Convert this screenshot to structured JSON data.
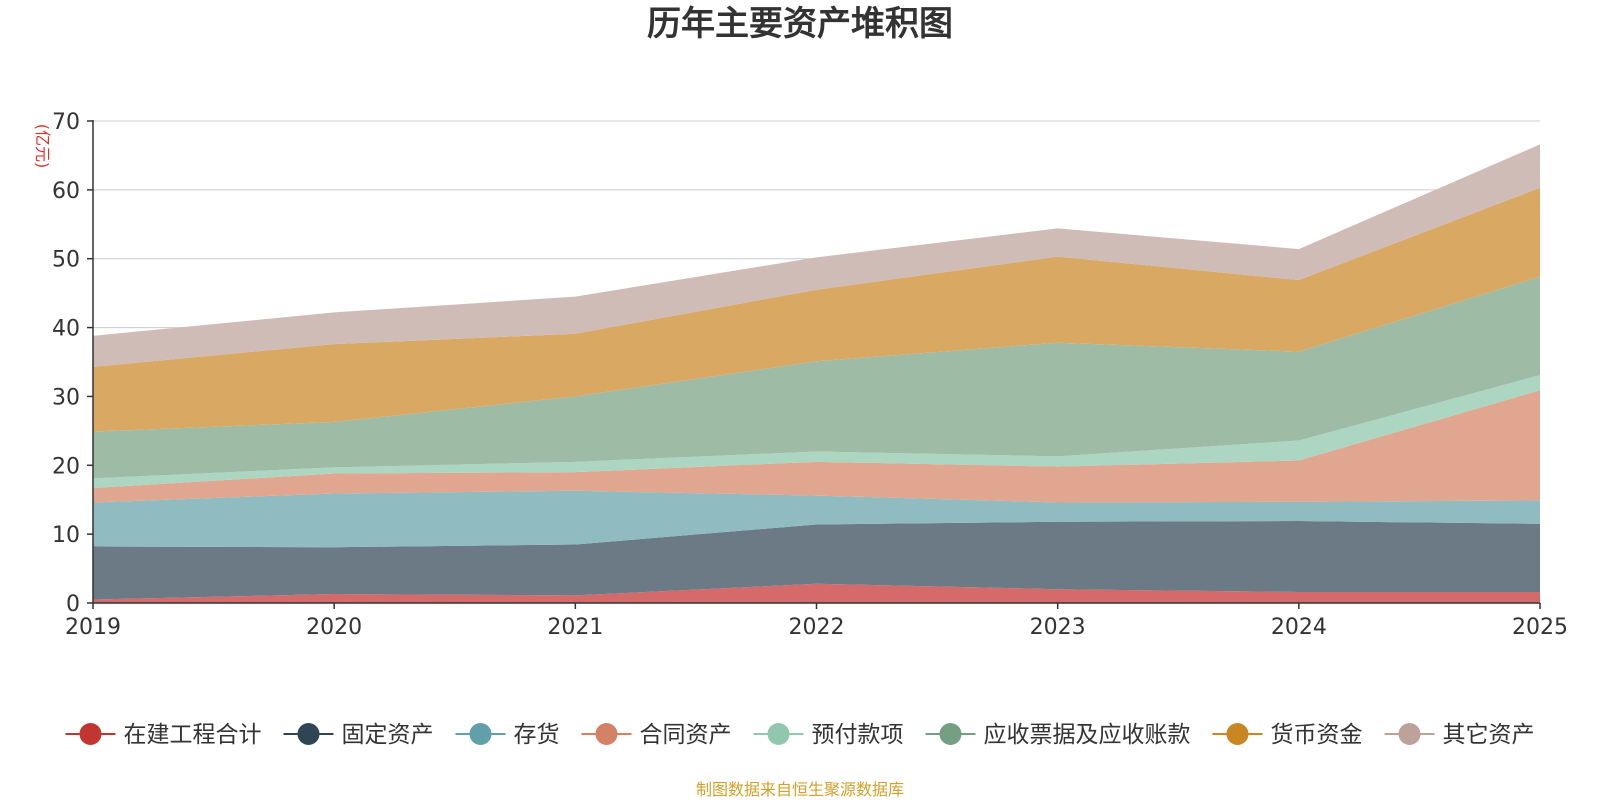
{
  "colors": {
    "gridline": "#cccccc",
    "axis": "#333333",
    "unit_label": "#e03030",
    "source_note": "#d4a028"
  },
  "source_note": "制图数据来自恒生聚源数据库",
  "chart_data": {
    "type": "area",
    "stacked": true,
    "title": "历年主要资产堆积图",
    "unit_label": "(亿元)",
    "xlabel": "",
    "ylabel": "(亿元)",
    "categories": [
      "2019",
      "2020",
      "2021",
      "2022",
      "2023",
      "2024",
      "2025"
    ],
    "ylim": [
      0,
      70
    ],
    "yticks": [
      0,
      10,
      20,
      30,
      40,
      50,
      60,
      70
    ],
    "grid": true,
    "legend_position": "bottom",
    "series": [
      {
        "name": "在建工程合计",
        "color": "#c23531",
        "fill": "#d46a6a",
        "values": [
          0.5,
          1.3,
          1.1,
          2.8,
          2.0,
          1.6,
          1.6
        ]
      },
      {
        "name": "固定资产",
        "color": "#2f4554",
        "fill": "#6c7a86",
        "values": [
          7.7,
          6.8,
          7.4,
          8.6,
          9.8,
          10.3,
          9.9
        ]
      },
      {
        "name": "存货",
        "color": "#61a0a8",
        "fill": "#8fbbc1",
        "values": [
          6.4,
          7.8,
          7.8,
          4.2,
          2.8,
          2.8,
          3.4
        ]
      },
      {
        "name": "合同资产",
        "color": "#d48265",
        "fill": "#e0a68f",
        "values": [
          2.1,
          2.9,
          2.7,
          4.9,
          5.2,
          6.0,
          16.0
        ]
      },
      {
        "name": "预付款项",
        "color": "#91c7ae",
        "fill": "#acd6c1",
        "values": [
          1.4,
          0.9,
          1.5,
          1.5,
          1.5,
          2.9,
          2.2
        ]
      },
      {
        "name": "应收票据及应收账款",
        "color": "#749f83",
        "fill": "#9ebba6",
        "values": [
          6.8,
          6.6,
          9.5,
          13.1,
          16.5,
          12.9,
          14.3
        ]
      },
      {
        "name": "货币资金",
        "color": "#ca8622",
        "fill": "#d9a863",
        "values": [
          9.4,
          11.3,
          9.1,
          10.4,
          12.5,
          10.4,
          12.9
        ]
      },
      {
        "name": "其它资产",
        "color": "#bda29a",
        "fill": "#cfbcb6",
        "values": [
          4.5,
          4.6,
          5.4,
          4.7,
          4.1,
          4.5,
          6.3
        ]
      }
    ]
  }
}
